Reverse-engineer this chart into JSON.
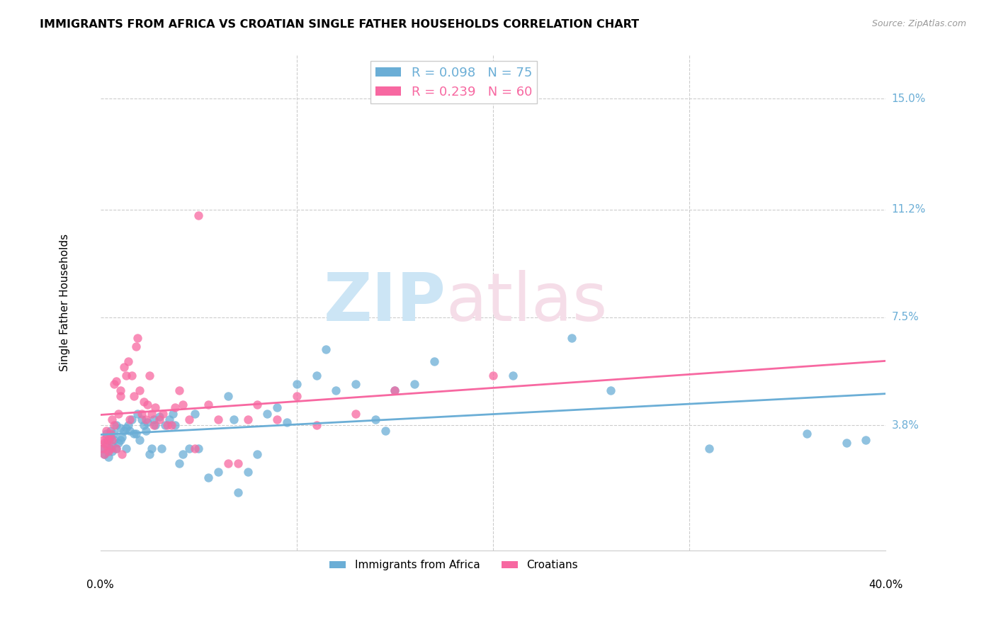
{
  "title": "IMMIGRANTS FROM AFRICA VS CROATIAN SINGLE FATHER HOUSEHOLDS CORRELATION CHART",
  "source": "Source: ZipAtlas.com",
  "ylabel": "Single Father Households",
  "yticks": [
    "15.0%",
    "11.2%",
    "7.5%",
    "3.8%"
  ],
  "ytick_vals": [
    0.15,
    0.112,
    0.075,
    0.038
  ],
  "xlim": [
    0.0,
    0.4
  ],
  "ylim": [
    -0.005,
    0.165
  ],
  "legend1_r": "0.098",
  "legend1_n": "75",
  "legend2_r": "0.239",
  "legend2_n": "60",
  "color_blue": "#6baed6",
  "color_pink": "#f768a1",
  "blue_scatter_x": [
    0.001,
    0.002,
    0.003,
    0.003,
    0.004,
    0.004,
    0.005,
    0.005,
    0.005,
    0.006,
    0.006,
    0.007,
    0.007,
    0.008,
    0.008,
    0.009,
    0.01,
    0.01,
    0.011,
    0.012,
    0.013,
    0.013,
    0.014,
    0.015,
    0.016,
    0.017,
    0.018,
    0.019,
    0.02,
    0.021,
    0.022,
    0.023,
    0.024,
    0.025,
    0.026,
    0.027,
    0.028,
    0.03,
    0.031,
    0.033,
    0.035,
    0.037,
    0.038,
    0.04,
    0.042,
    0.045,
    0.048,
    0.05,
    0.055,
    0.06,
    0.065,
    0.068,
    0.07,
    0.075,
    0.08,
    0.085,
    0.09,
    0.095,
    0.1,
    0.11,
    0.115,
    0.12,
    0.13,
    0.14,
    0.145,
    0.15,
    0.16,
    0.17,
    0.21,
    0.24,
    0.26,
    0.31,
    0.36,
    0.38,
    0.39
  ],
  "blue_scatter_y": [
    0.03,
    0.028,
    0.032,
    0.035,
    0.027,
    0.033,
    0.03,
    0.034,
    0.036,
    0.029,
    0.031,
    0.035,
    0.033,
    0.038,
    0.03,
    0.032,
    0.037,
    0.033,
    0.034,
    0.036,
    0.03,
    0.037,
    0.038,
    0.036,
    0.04,
    0.035,
    0.035,
    0.042,
    0.033,
    0.04,
    0.038,
    0.036,
    0.039,
    0.028,
    0.03,
    0.04,
    0.038,
    0.041,
    0.03,
    0.038,
    0.04,
    0.042,
    0.038,
    0.025,
    0.028,
    0.03,
    0.042,
    0.03,
    0.02,
    0.022,
    0.048,
    0.04,
    0.015,
    0.022,
    0.028,
    0.042,
    0.044,
    0.039,
    0.052,
    0.055,
    0.064,
    0.05,
    0.052,
    0.04,
    0.036,
    0.05,
    0.052,
    0.06,
    0.055,
    0.068,
    0.05,
    0.03,
    0.035,
    0.032,
    0.033
  ],
  "pink_scatter_x": [
    0.001,
    0.001,
    0.002,
    0.002,
    0.003,
    0.003,
    0.003,
    0.004,
    0.004,
    0.005,
    0.005,
    0.006,
    0.006,
    0.007,
    0.007,
    0.008,
    0.008,
    0.009,
    0.01,
    0.01,
    0.011,
    0.012,
    0.013,
    0.014,
    0.015,
    0.016,
    0.017,
    0.018,
    0.019,
    0.02,
    0.021,
    0.022,
    0.023,
    0.024,
    0.025,
    0.026,
    0.027,
    0.028,
    0.03,
    0.032,
    0.034,
    0.036,
    0.038,
    0.04,
    0.042,
    0.045,
    0.048,
    0.05,
    0.055,
    0.06,
    0.065,
    0.07,
    0.075,
    0.08,
    0.09,
    0.1,
    0.11,
    0.13,
    0.15,
    0.2
  ],
  "pink_scatter_y": [
    0.03,
    0.033,
    0.028,
    0.032,
    0.031,
    0.034,
    0.036,
    0.029,
    0.033,
    0.03,
    0.035,
    0.033,
    0.04,
    0.038,
    0.052,
    0.03,
    0.053,
    0.042,
    0.048,
    0.05,
    0.028,
    0.058,
    0.055,
    0.06,
    0.04,
    0.055,
    0.048,
    0.065,
    0.068,
    0.05,
    0.042,
    0.046,
    0.04,
    0.045,
    0.055,
    0.042,
    0.038,
    0.044,
    0.04,
    0.042,
    0.038,
    0.038,
    0.044,
    0.05,
    0.045,
    0.04,
    0.03,
    0.11,
    0.045,
    0.04,
    0.025,
    0.025,
    0.04,
    0.045,
    0.04,
    0.048,
    0.038,
    0.042,
    0.05,
    0.055
  ]
}
